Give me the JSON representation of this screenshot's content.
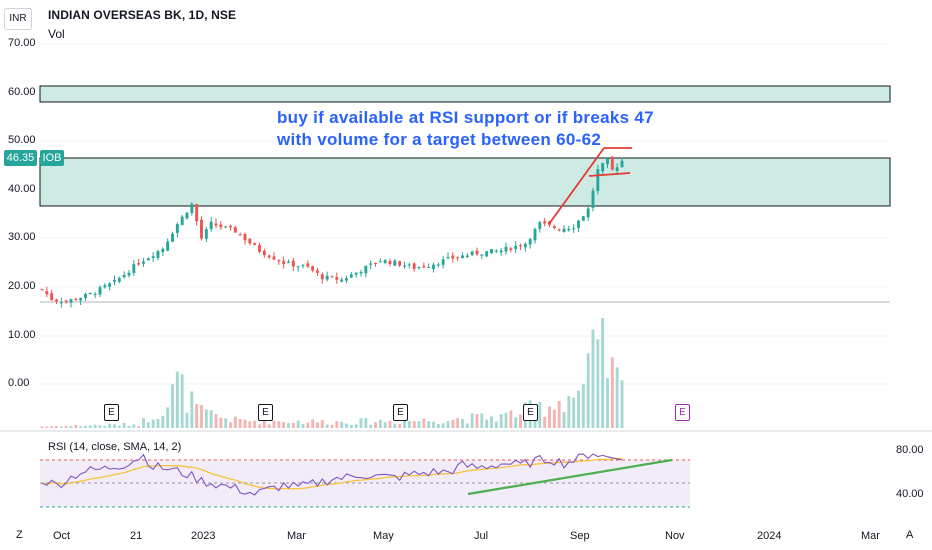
{
  "header": {
    "currency": "INR",
    "symbol_title": "INDIAN OVERSEAS BK, 1D, NSE",
    "volume_label": "Vol"
  },
  "price_scale": {
    "labels": [
      "70.00",
      "60.00",
      "50.00",
      "40.00",
      "30.00",
      "20.00",
      "10.00",
      "0.00"
    ]
  },
  "last_price": {
    "value": "46.35",
    "ticker": "IOB"
  },
  "annotation": {
    "line1": "buy if available at RSI support or if breaks 47",
    "line2": "with volume for a target between 60-62"
  },
  "earnings_marker": "E",
  "rsi": {
    "label": "RSI (14, close, SMA, 14, 2)",
    "scale": [
      "80.00",
      "40.00"
    ]
  },
  "time_axis": [
    "Oct",
    "21",
    "2023",
    "Mar",
    "May",
    "Jul",
    "Sep",
    "Nov",
    "2024",
    "Mar"
  ],
  "toolbar": {
    "goto_label": "Z",
    "auto_label": "A"
  },
  "colors": {
    "up": "#26a69a",
    "down": "#ef5350",
    "zone_fill": "#cdebe3",
    "annotation": "#2962ff",
    "rsi_line": "#7e57c2",
    "rsi_ma": "#f7c33c"
  },
  "chart_data": {
    "type": "candlestick",
    "title": "INDIAN OVERSEAS BK, 1D, NSE",
    "ylim": [
      0,
      75
    ],
    "x_range": [
      "Oct",
      "Mar"
    ],
    "zones": [
      {
        "from": 37,
        "to": 47
      },
      {
        "from": 58,
        "to": 61.5
      }
    ],
    "horizontal_levels": [
      17
    ],
    "last_price": 46.35,
    "price_path": [
      [
        0,
        19.5
      ],
      [
        2,
        17.5
      ],
      [
        5,
        17
      ],
      [
        10,
        18.5
      ],
      [
        15,
        21
      ],
      [
        20,
        25
      ],
      [
        25,
        28
      ],
      [
        28,
        33
      ],
      [
        31,
        37
      ],
      [
        33,
        30
      ],
      [
        35,
        33
      ],
      [
        40,
        31.5
      ],
      [
        45,
        27.5
      ],
      [
        50,
        25
      ],
      [
        55,
        24
      ],
      [
        58,
        22
      ],
      [
        62,
        21.5
      ],
      [
        67,
        24
      ],
      [
        70,
        25.5
      ],
      [
        73,
        25
      ],
      [
        77,
        24
      ],
      [
        80,
        24.5
      ],
      [
        85,
        26
      ],
      [
        90,
        27
      ],
      [
        95,
        27.5
      ],
      [
        100,
        29
      ],
      [
        103,
        33
      ],
      [
        107,
        32
      ],
      [
        110,
        32.5
      ],
      [
        113,
        36
      ],
      [
        115,
        44
      ],
      [
        117,
        46
      ],
      [
        118,
        44
      ],
      [
        120,
        46
      ]
    ],
    "volume_path": [
      [
        0,
        0.2
      ],
      [
        20,
        0.5
      ],
      [
        26,
        3
      ],
      [
        28,
        6
      ],
      [
        30,
        4
      ],
      [
        33,
        2
      ],
      [
        40,
        1
      ],
      [
        60,
        0.8
      ],
      [
        80,
        1
      ],
      [
        95,
        1.5
      ],
      [
        105,
        3
      ],
      [
        112,
        5
      ],
      [
        114,
        9
      ],
      [
        116,
        10
      ],
      [
        118,
        7
      ],
      [
        120,
        5
      ]
    ],
    "rsi_ylim": [
      30,
      85
    ],
    "rsi_path": [
      [
        0,
        53
      ],
      [
        3,
        48
      ],
      [
        8,
        60
      ],
      [
        13,
        63
      ],
      [
        17,
        67
      ],
      [
        21,
        75
      ],
      [
        23,
        65
      ],
      [
        26,
        63
      ],
      [
        30,
        58
      ],
      [
        33,
        52
      ],
      [
        37,
        48
      ],
      [
        41,
        44
      ],
      [
        44,
        40
      ],
      [
        47,
        44
      ],
      [
        50,
        48
      ],
      [
        53,
        46
      ],
      [
        57,
        50
      ],
      [
        60,
        54
      ],
      [
        63,
        55
      ],
      [
        66,
        58
      ],
      [
        69,
        56
      ],
      [
        73,
        55
      ],
      [
        77,
        58
      ],
      [
        81,
        60
      ],
      [
        84,
        60
      ],
      [
        87,
        66
      ],
      [
        90,
        64
      ],
      [
        93,
        66
      ],
      [
        96,
        68
      ],
      [
        99,
        66
      ],
      [
        102,
        70
      ],
      [
        105,
        72
      ],
      [
        108,
        68
      ],
      [
        111,
        72
      ],
      [
        114,
        78
      ],
      [
        116,
        74
      ],
      [
        118,
        73
      ],
      [
        120,
        75
      ]
    ]
  }
}
